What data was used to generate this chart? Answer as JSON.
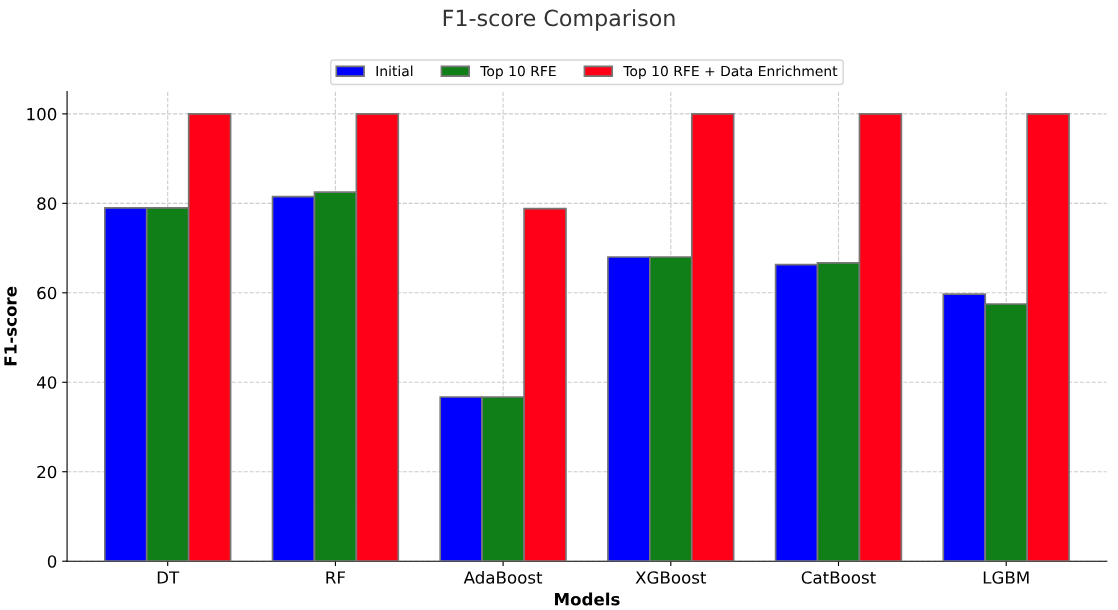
{
  "chart_data": {
    "type": "bar",
    "title": "F1-score Comparison",
    "xlabel": "Models",
    "ylabel": "F1-score",
    "categories": [
      "DT",
      "RF",
      "AdaBoost",
      "XGBoost",
      "CatBoost",
      "LGBM"
    ],
    "series": [
      {
        "name": "Initial",
        "color": "#0000ff",
        "values": [
          79.0,
          81.5,
          36.7,
          68.0,
          66.3,
          59.7
        ]
      },
      {
        "name": "Top 10 RFE",
        "color": "#117f17",
        "values": [
          79.0,
          82.5,
          36.7,
          68.0,
          66.7,
          57.5
        ]
      },
      {
        "name": "Top 10 RFE + Data Enrichment",
        "color": "#ff0016",
        "values": [
          100,
          100,
          78.8,
          100,
          100,
          100
        ]
      }
    ],
    "ylim": [
      0,
      105
    ],
    "yticks": [
      0,
      20,
      40,
      60,
      80,
      100
    ],
    "grid": true,
    "legend": "top"
  }
}
